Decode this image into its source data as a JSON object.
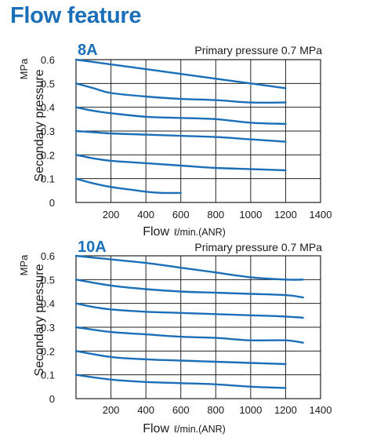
{
  "page": {
    "title": "Flow feature"
  },
  "colors": {
    "title": "#1a6fb8",
    "line": "#1a6fb8",
    "grid": "#222222",
    "text": "#1a1a1a"
  },
  "chart_data": [
    {
      "type": "line",
      "title": "8A",
      "subtitle": "Primary pressure 0.7 MPa",
      "xlabel_main": "Flow",
      "xlabel_unit": "ℓ/min.(ANR)",
      "ylabel_main": "Secondary pressure",
      "ylabel_unit": "MPa",
      "xlim": [
        0,
        1400
      ],
      "ylim": [
        0,
        0.6
      ],
      "x_ticks": [
        "200",
        "400",
        "600",
        "800",
        "1000",
        "1200",
        "1400"
      ],
      "y_ticks": [
        "0",
        "0.1",
        "0.2",
        "0.3",
        "0.4",
        "0.5",
        "0.6"
      ],
      "grid": true,
      "series": [
        {
          "x": [
            0,
            200,
            400,
            600,
            800,
            1000,
            1200
          ],
          "y": [
            0.6,
            0.58,
            0.56,
            0.54,
            0.52,
            0.5,
            0.48
          ]
        },
        {
          "x": [
            0,
            100,
            200,
            400,
            600,
            800,
            1000,
            1200
          ],
          "y": [
            0.5,
            0.48,
            0.46,
            0.445,
            0.435,
            0.43,
            0.42,
            0.42
          ]
        },
        {
          "x": [
            0,
            100,
            200,
            400,
            600,
            800,
            1000,
            1200
          ],
          "y": [
            0.4,
            0.385,
            0.375,
            0.36,
            0.355,
            0.35,
            0.335,
            0.33
          ]
        },
        {
          "x": [
            0,
            200,
            400,
            600,
            800,
            1000,
            1200
          ],
          "y": [
            0.3,
            0.29,
            0.285,
            0.28,
            0.275,
            0.265,
            0.255
          ]
        },
        {
          "x": [
            0,
            100,
            200,
            400,
            600,
            800,
            1000,
            1200
          ],
          "y": [
            0.2,
            0.185,
            0.175,
            0.165,
            0.155,
            0.145,
            0.14,
            0.135
          ]
        },
        {
          "x": [
            0,
            100,
            200,
            300,
            400,
            500,
            600
          ],
          "y": [
            0.1,
            0.08,
            0.065,
            0.055,
            0.045,
            0.04,
            0.04
          ]
        }
      ]
    },
    {
      "type": "line",
      "title": "10A",
      "subtitle": "Primary pressure 0.7 MPa",
      "xlabel_main": "Flow",
      "xlabel_unit": "ℓ/min.(ANR)",
      "ylabel_main": "Secondary pressure",
      "ylabel_unit": "MPa",
      "xlim": [
        0,
        1400
      ],
      "ylim": [
        0,
        0.6
      ],
      "x_ticks": [
        "200",
        "400",
        "600",
        "800",
        "1000",
        "1200",
        "1400"
      ],
      "y_ticks": [
        "0",
        "0.1",
        "0.2",
        "0.3",
        "0.4",
        "0.5",
        "0.6"
      ],
      "grid": true,
      "series": [
        {
          "x": [
            0,
            200,
            400,
            600,
            800,
            1000,
            1200,
            1300
          ],
          "y": [
            0.6,
            0.585,
            0.57,
            0.55,
            0.53,
            0.51,
            0.5,
            0.5
          ]
        },
        {
          "x": [
            0,
            200,
            400,
            600,
            800,
            1000,
            1200,
            1300
          ],
          "y": [
            0.5,
            0.475,
            0.46,
            0.45,
            0.445,
            0.44,
            0.435,
            0.425
          ]
        },
        {
          "x": [
            0,
            100,
            200,
            400,
            600,
            800,
            1000,
            1200,
            1300
          ],
          "y": [
            0.4,
            0.385,
            0.375,
            0.365,
            0.36,
            0.355,
            0.35,
            0.345,
            0.34
          ]
        },
        {
          "x": [
            0,
            200,
            400,
            600,
            800,
            1000,
            1200,
            1300
          ],
          "y": [
            0.3,
            0.28,
            0.27,
            0.26,
            0.255,
            0.245,
            0.245,
            0.235
          ]
        },
        {
          "x": [
            0,
            200,
            400,
            600,
            800,
            1000,
            1200
          ],
          "y": [
            0.2,
            0.175,
            0.165,
            0.16,
            0.155,
            0.15,
            0.145
          ]
        },
        {
          "x": [
            0,
            200,
            400,
            600,
            800,
            1000,
            1200
          ],
          "y": [
            0.1,
            0.08,
            0.07,
            0.065,
            0.06,
            0.05,
            0.045
          ]
        }
      ]
    }
  ]
}
